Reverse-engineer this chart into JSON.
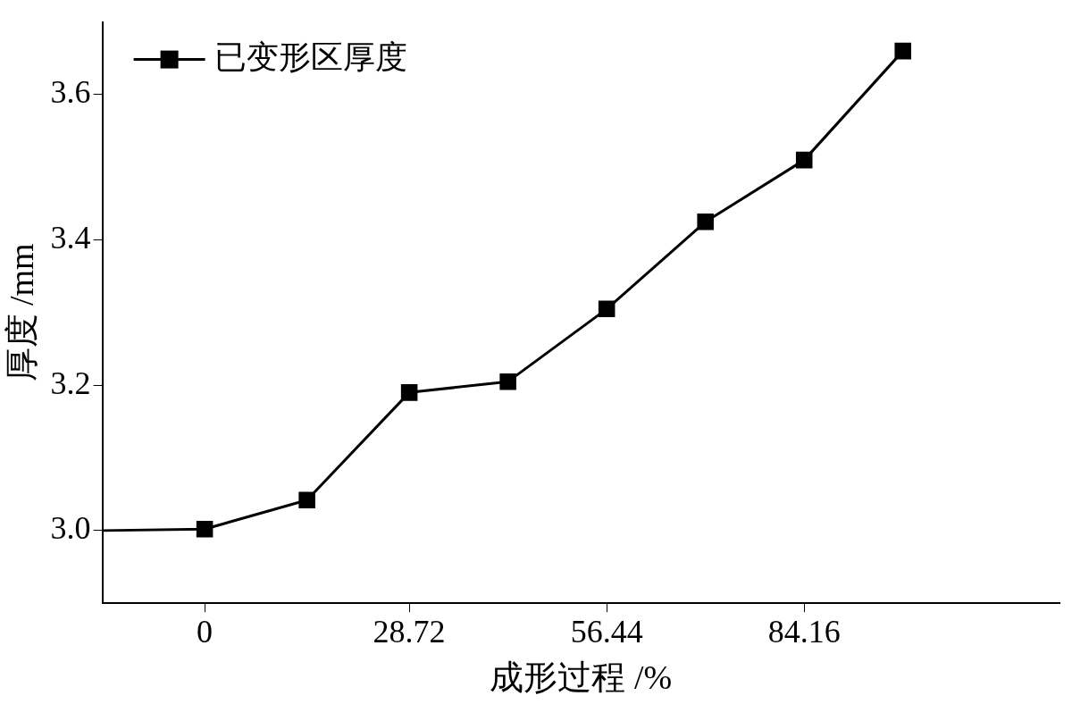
{
  "chart_data": {
    "type": "line",
    "xlabel": "成形过程 /%",
    "ylabel": "厚度 /mm",
    "x": [
      -14.36,
      0,
      14.36,
      28.72,
      42.58,
      56.44,
      70.3,
      84.16,
      98.02
    ],
    "series": [
      {
        "name": "已变形区厚度",
        "color": "#000000",
        "values": [
          3.0,
          3.002,
          3.042,
          3.19,
          3.205,
          3.305,
          3.425,
          3.51,
          3.66
        ]
      }
    ],
    "xlim": [
      -14.36,
      120
    ],
    "xticks": [
      0,
      28.72,
      56.44,
      84.16
    ],
    "ylim": [
      2.9,
      3.7
    ],
    "yticks": [
      {
        "value": 3.0,
        "label": "3.0"
      },
      {
        "value": 3.2,
        "label": "3.2"
      },
      {
        "value": 3.4,
        "label": "3.4"
      },
      {
        "value": 3.6,
        "label": "3.6"
      }
    ],
    "grid": false,
    "legend": "top left",
    "marker": "square",
    "line_style": "solid"
  }
}
